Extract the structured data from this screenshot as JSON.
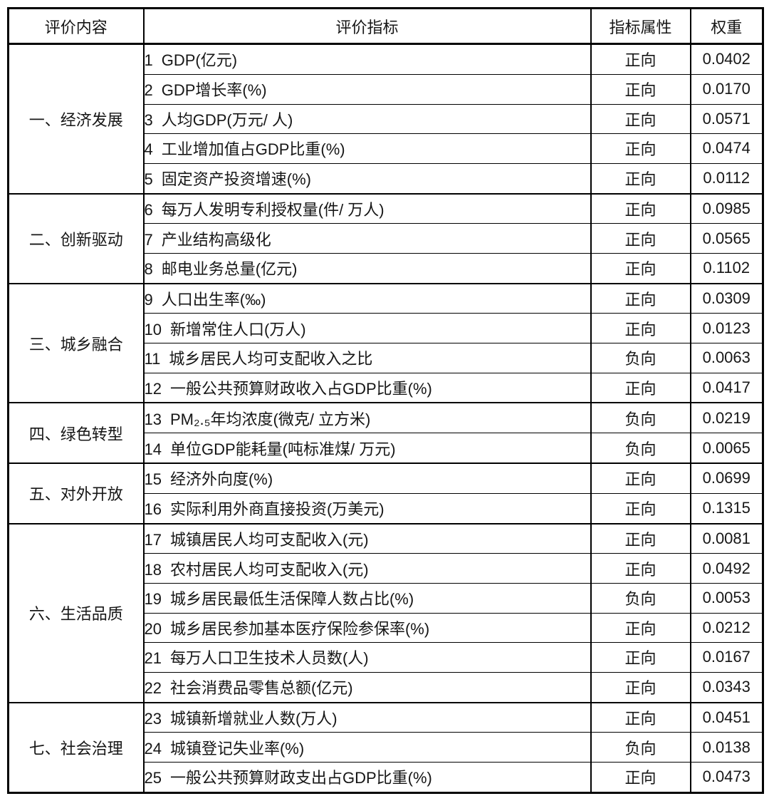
{
  "table": {
    "headers": {
      "content": "评价内容",
      "indicator": "评价指标",
      "attribute": "指标属性",
      "weight": "权重"
    },
    "attribute_values": {
      "positive": "正向",
      "negative": "负向"
    },
    "colors": {
      "border": "#000000",
      "text": "#161616",
      "background": "#ffffff"
    },
    "groups": [
      {
        "category": "一、经济发展",
        "rows": [
          {
            "no": "1",
            "indicator": "GDP(亿元)",
            "attribute": "正向",
            "weight": "0.0402"
          },
          {
            "no": "2",
            "indicator": "GDP增长率(%)",
            "attribute": "正向",
            "weight": "0.0170"
          },
          {
            "no": "3",
            "indicator": "人均GDP(万元/ 人)",
            "attribute": "正向",
            "weight": "0.0571"
          },
          {
            "no": "4",
            "indicator": "工业增加值占GDP比重(%)",
            "attribute": "正向",
            "weight": "0.0474"
          },
          {
            "no": "5",
            "indicator": "固定资产投资增速(%)",
            "attribute": "正向",
            "weight": "0.0112"
          }
        ]
      },
      {
        "category": "二、创新驱动",
        "rows": [
          {
            "no": "6",
            "indicator": "每万人发明专利授权量(件/ 万人)",
            "attribute": "正向",
            "weight": "0.0985"
          },
          {
            "no": "7",
            "indicator": "产业结构高级化",
            "attribute": "正向",
            "weight": "0.0565"
          },
          {
            "no": "8",
            "indicator": "邮电业务总量(亿元)",
            "attribute": "正向",
            "weight": "0.1102"
          }
        ]
      },
      {
        "category": "三、城乡融合",
        "rows": [
          {
            "no": "9",
            "indicator": "人口出生率(‰)",
            "attribute": "正向",
            "weight": "0.0309"
          },
          {
            "no": "10",
            "indicator": "新增常住人口(万人)",
            "attribute": "正向",
            "weight": "0.0123"
          },
          {
            "no": "11",
            "indicator": "城乡居民人均可支配收入之比",
            "attribute": "负向",
            "weight": "0.0063"
          },
          {
            "no": "12",
            "indicator": "一般公共预算财政收入占GDP比重(%)",
            "attribute": "正向",
            "weight": "0.0417"
          }
        ]
      },
      {
        "category": "四、绿色转型",
        "rows": [
          {
            "no": "13",
            "indicator": "PM₂.₅年均浓度(微克/ 立方米)",
            "attribute": "负向",
            "weight": "0.0219"
          },
          {
            "no": "14",
            "indicator": "单位GDP能耗量(吨标准煤/ 万元)",
            "attribute": "负向",
            "weight": "0.0065"
          }
        ]
      },
      {
        "category": "五、对外开放",
        "rows": [
          {
            "no": "15",
            "indicator": "经济外向度(%)",
            "attribute": "正向",
            "weight": "0.0699"
          },
          {
            "no": "16",
            "indicator": "实际利用外商直接投资(万美元)",
            "attribute": "正向",
            "weight": "0.1315"
          }
        ]
      },
      {
        "category": "六、生活品质",
        "rows": [
          {
            "no": "17",
            "indicator": "城镇居民人均可支配收入(元)",
            "attribute": "正向",
            "weight": "0.0081"
          },
          {
            "no": "18",
            "indicator": "农村居民人均可支配收入(元)",
            "attribute": "正向",
            "weight": "0.0492"
          },
          {
            "no": "19",
            "indicator": "城乡居民最低生活保障人数占比(%)",
            "attribute": "负向",
            "weight": "0.0053"
          },
          {
            "no": "20",
            "indicator": "城乡居民参加基本医疗保险参保率(%)",
            "attribute": "正向",
            "weight": "0.0212"
          },
          {
            "no": "21",
            "indicator": "每万人口卫生技术人员数(人)",
            "attribute": "正向",
            "weight": "0.0167"
          },
          {
            "no": "22",
            "indicator": "社会消费品零售总额(亿元)",
            "attribute": "正向",
            "weight": "0.0343"
          }
        ]
      },
      {
        "category": "七、社会治理",
        "rows": [
          {
            "no": "23",
            "indicator": "城镇新增就业人数(万人)",
            "attribute": "正向",
            "weight": "0.0451"
          },
          {
            "no": "24",
            "indicator": "城镇登记失业率(%)",
            "attribute": "负向",
            "weight": "0.0138"
          },
          {
            "no": "25",
            "indicator": "一般公共预算财政支出占GDP比重(%)",
            "attribute": "正向",
            "weight": "0.0473"
          }
        ]
      }
    ]
  }
}
